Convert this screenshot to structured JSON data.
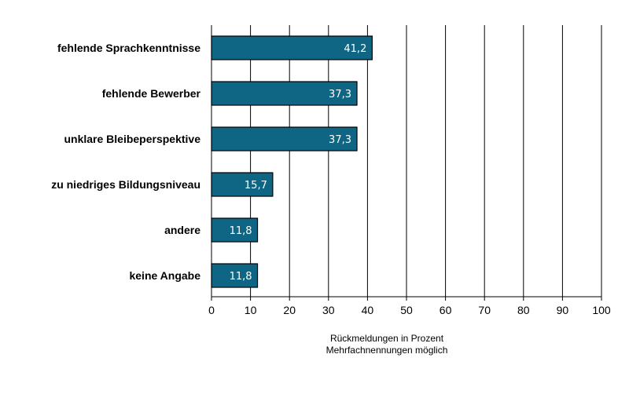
{
  "chart_data": {
    "type": "bar",
    "orientation": "horizontal",
    "categories": [
      "fehlende Sprachkenntnisse",
      "fehlende Bewerber",
      "unklare Bleibeperspektive",
      "zu niedriges Bildungsniveau",
      "andere",
      "keine Angabe"
    ],
    "values": [
      41.2,
      37.3,
      37.3,
      15.7,
      11.8,
      11.8
    ],
    "value_labels": [
      "41,2",
      "37,3",
      "37,3",
      "15,7",
      "11,8",
      "11,8"
    ],
    "xlim": [
      0,
      100
    ],
    "x_ticks": [
      0,
      10,
      20,
      30,
      40,
      50,
      60,
      70,
      80,
      90,
      100
    ],
    "x_tick_labels": [
      "0",
      "10",
      "20",
      "30",
      "40",
      "50",
      "60",
      "70",
      "80",
      "90",
      "100"
    ],
    "xlabel_line1": "Rückmeldungen in Prozent",
    "xlabel_line2": "Mehrfachnennungen möglich",
    "grid": "vertical",
    "bar_color": "#0e6584",
    "bar_border": "#000000"
  }
}
